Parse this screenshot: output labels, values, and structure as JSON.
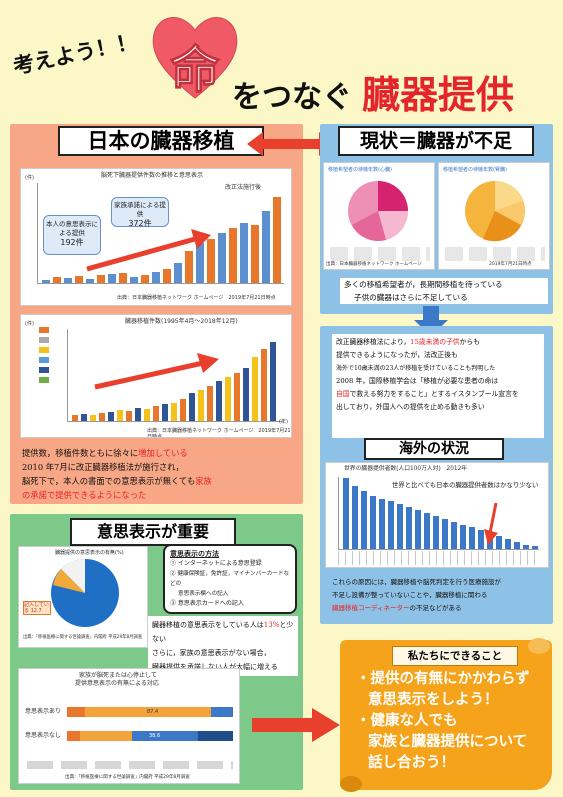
{
  "header": {
    "slogan": "考えよう！！",
    "heart_char": "命",
    "title_mid": "をつなぐ",
    "title_red": "臓器提供"
  },
  "sections": {
    "japan": {
      "heading": "日本の臓器移植",
      "chart1": {
        "title": "脳死下臓器提供件数の推移と意思表示",
        "y_unit": "(件)",
        "callout_intent": "本人の意思表示による提供",
        "callout_intent_count": "192件",
        "callout_family": "家族承諾による提供",
        "callout_family_count": "372件",
        "law_label": "改正法施行後",
        "source": "出典：日本臓器移植ネットワーク ホームページ　2019年7月21日時点"
      },
      "chart2": {
        "title": "臓器移植件数(1995年4月～2018年12月)",
        "y_unit": "(件)",
        "x_unit": "(年)",
        "source": "出典：日本臓器移植ネットワーク ホームページ　2019年7月21日時点"
      },
      "text_pre": "提供数，移植件数ともに徐々に",
      "text_hl1": "増加している",
      "text_line2": "2010 年7月に改正臓器移植法が施行され，",
      "text_line3a": "脳死下で，本人の書面での意思表示が無くても",
      "text_hl2": "家族",
      "text_hl3": "の承諾で提供できるようになった"
    },
    "status": {
      "heading": "現状＝臓器が不足",
      "pie1_title": "移植希望者の待機年数(心臓)",
      "pie2_title": "移植希望者の待機年数(腎臓)",
      "pie_source": "出典：日本臓器移植ネットワーク ホームページ",
      "pie_date": "2019年7月21日時点",
      "note_line1": "多くの移植希望者が，長期間移植を待っている",
      "note_line2": "子供の臓器はさらに不足している"
    },
    "child": {
      "line1": "改正臓器移植法により，",
      "line1_hl": "15歳未満の子供",
      "line1_end": "からも",
      "line2": "提供できるようになったが，法改正後も",
      "line3": "海外で10歳未満の23人が移植を受けていることも判明した",
      "line4": "2008 年，国際移植学会は「移植が必要な患者の命は",
      "line5_hl": "自国",
      "line5": "で救える努力をすること」とするイスタンブール宣言を",
      "line6": "出しており，外国人への提供を止める動きも多い"
    },
    "overseas": {
      "heading": "海外の状況",
      "chart_title": "世界の臓器提供者数(人口100万人対)　2012年",
      "callout": "世界と比べても日本の臓器提供者数はかなり少ない",
      "note1": "これらの原因には，臓器移植や脳死判定を行う医療施設が",
      "note2": "不足し設備が整っていないことや，臓器移植に関わる",
      "note3_hl": "臓器移植コーディネーター",
      "note3": "の不足などがある"
    },
    "intent": {
      "heading": "意思表示が重要",
      "pie_title": "臓器提供の意思表示の有無(%)",
      "pie_label": "記入している 12.7",
      "pie_source": "出典：「移植医療に関する世論調査」内閣府 平成29年8月調査",
      "methods_title": "意思表示の方法",
      "method1": "① インターネットによる意思登録",
      "method2": "② 健康保険証，免許証，マイナンバーカードなどの",
      "method2b": "意思表示欄への記入",
      "method3": "③ 意思表示カードへの記入",
      "text1a": "臓器移植の意思表示をしている人は",
      "text1_hl": "13%",
      "text1b": "と少ない",
      "text2": "さらに，家族の意思表示がない場合，",
      "text3": "臓器提供を承諾しない人が大幅に増える",
      "bar_title1": "家族が脳死または心停止して",
      "bar_title2": "提供意思表示の有無による対応",
      "bar_row1": "意思表示あり",
      "bar_row2": "意思表示なし",
      "bar_val1": "87.4",
      "bar_val2": "38.6",
      "bar_source": "出典：「移植医療に関する世論調査」内閣府 平成29年8月調査"
    },
    "action": {
      "heading": "私たちにできること",
      "line1": "・提供の有無にかかわらず",
      "line2": "意思表示をしよう！",
      "line3": "・健康な人でも",
      "line4": "家族と臓器提供について",
      "line5": "話し合おう！"
    }
  },
  "colors": {
    "salmon": "#f7a785",
    "blue": "#8ec1e6",
    "green": "#7cc98a",
    "arrow_red": "#e8402c",
    "orange": "#f5a31a",
    "blue_bar": "#3b78c8"
  }
}
